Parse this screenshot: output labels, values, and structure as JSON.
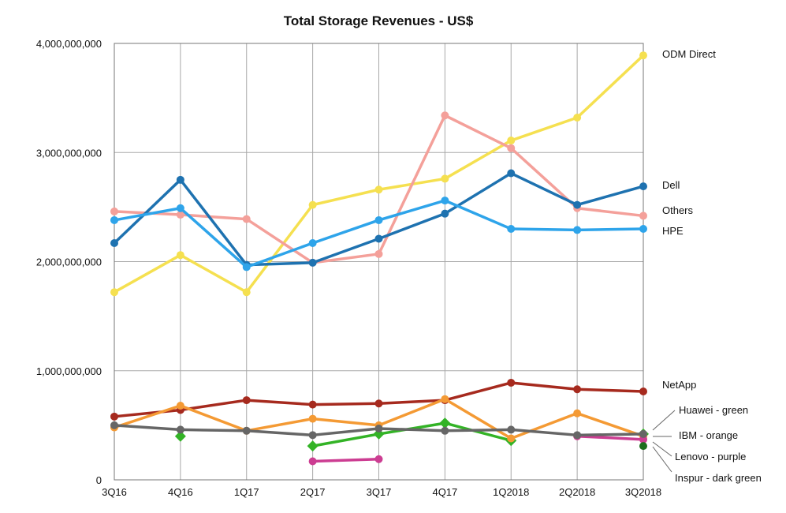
{
  "chart_data": {
    "type": "line",
    "title": "Total Storage Revenues - US$",
    "categories": [
      "3Q16",
      "4Q16",
      "1Q17",
      "2Q17",
      "3Q17",
      "4Q17",
      "1Q2018",
      "2Q2018",
      "3Q2018"
    ],
    "ylim": [
      0,
      4000000000
    ],
    "yticks": [
      {
        "value": 0,
        "label": "0"
      },
      {
        "value": 1000000000,
        "label": "1,000,000,000"
      },
      {
        "value": 2000000000,
        "label": "2,000,000,000"
      },
      {
        "value": 3000000000,
        "label": "3,000,000,000"
      },
      {
        "value": 4000000000,
        "label": "4,000,000,000"
      }
    ],
    "grid": true,
    "series": [
      {
        "name": "ODM Direct",
        "color": "#f5e050",
        "marker": "circle",
        "values": [
          1720000000,
          2060000000,
          1720000000,
          2520000000,
          2660000000,
          2760000000,
          3110000000,
          3320000000,
          3890000000
        ]
      },
      {
        "name": "Others",
        "color": "#f4a09a",
        "marker": "circle",
        "values": [
          2460000000,
          2430000000,
          2390000000,
          1990000000,
          2070000000,
          3340000000,
          3040000000,
          2490000000,
          2420000000
        ]
      },
      {
        "name": "Dell",
        "color": "#1e72b0",
        "marker": "circle",
        "values": [
          2170000000,
          2750000000,
          1970000000,
          1990000000,
          2210000000,
          2440000000,
          2810000000,
          2520000000,
          2690000000
        ]
      },
      {
        "name": "HPE",
        "color": "#2ea4ea",
        "marker": "circle",
        "values": [
          2380000000,
          2490000000,
          1950000000,
          2170000000,
          2380000000,
          2560000000,
          2300000000,
          2290000000,
          2300000000
        ]
      },
      {
        "name": "NetApp",
        "color": "#a62a1e",
        "marker": "circle",
        "values": [
          580000000,
          640000000,
          730000000,
          690000000,
          700000000,
          730000000,
          890000000,
          830000000,
          810000000
        ]
      },
      {
        "name": "Huawei - green",
        "color": "#33b326",
        "marker": "diamond",
        "values": [
          null,
          400000000,
          null,
          310000000,
          420000000,
          520000000,
          360000000,
          null,
          420000000
        ]
      },
      {
        "name": "IBM - orange",
        "color": "#f49a34",
        "marker": "circle",
        "values": [
          480000000,
          680000000,
          450000000,
          560000000,
          500000000,
          740000000,
          380000000,
          610000000,
          400000000
        ]
      },
      {
        "name": "Lenovo - purple",
        "color": "#cc3d92",
        "marker": "circle",
        "values": [
          null,
          null,
          null,
          170000000,
          190000000,
          null,
          null,
          400000000,
          370000000
        ]
      },
      {
        "name": "",
        "color": "#666666",
        "marker": "circle",
        "values": [
          500000000,
          460000000,
          450000000,
          410000000,
          470000000,
          450000000,
          460000000,
          410000000,
          420000000
        ]
      },
      {
        "name": "Inspur - dark green",
        "color": "#1d6e1d",
        "marker": "circle",
        "values": [
          null,
          null,
          null,
          null,
          null,
          null,
          null,
          null,
          310000000
        ]
      }
    ],
    "legend": {
      "placement": "right",
      "labels": [
        "ODM Direct",
        "Dell",
        "Others",
        "HPE",
        "NetApp",
        "Huawei - green",
        "IBM - orange",
        "Lenovo - purple",
        "Inspur - dark green"
      ]
    }
  }
}
